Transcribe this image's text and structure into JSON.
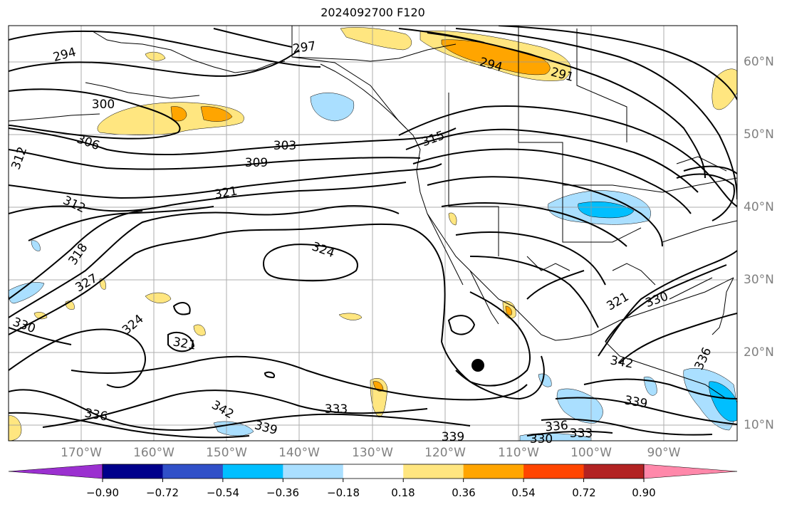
{
  "title": "2024092700 F120",
  "longitude_labels": [
    "170°W",
    "160°W",
    "150°W",
    "140°W",
    "130°W",
    "120°W",
    "110°W",
    "100°W",
    "90°W"
  ],
  "latitude_labels": [
    "60°N",
    "50°N",
    "40°N",
    "30°N",
    "20°N",
    "10°N"
  ],
  "contour_labels": [
    "294",
    "297",
    "294",
    "291",
    "300",
    "306",
    "303",
    "309",
    "312",
    "312",
    "321",
    "318",
    "324",
    "327",
    "324",
    "330",
    "321",
    "315",
    "336",
    "342",
    "339",
    "333",
    "339",
    "336",
    "333",
    "330",
    "321",
    "342",
    "339",
    "336",
    "330"
  ],
  "colorbar": {
    "ticks": [
      "−0.90",
      "−0.72",
      "−0.54",
      "−0.36",
      "−0.18",
      "0.18",
      "0.36",
      "0.54",
      "0.72",
      "0.90"
    ],
    "colors": [
      "#9b30d0",
      "#00008b",
      "#3050c8",
      "#00bfff",
      "#aadfff",
      "#ffffff",
      "#ffe680",
      "#ffa500",
      "#ff4500",
      "#b22222",
      "#ff88aa"
    ]
  },
  "colors": {
    "contour": "#000000",
    "gridline": "#808080",
    "coastline": "#000000",
    "marker": "#000000"
  }
}
